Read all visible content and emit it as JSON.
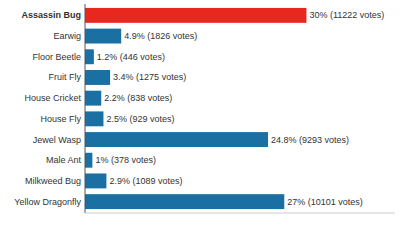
{
  "chart_data": {
    "type": "bar",
    "orientation": "horizontal",
    "categories": [
      "Yellow Dragonfly",
      "Milkweed Bug",
      "Male Ant",
      "Jewel Wasp",
      "House Fly",
      "House Cricket",
      "Fruit Fly",
      "Floor Beetle",
      "Earwig",
      "Assassin Bug"
    ],
    "values": [
      27,
      2.9,
      1.0,
      24.8,
      2.5,
      2.2,
      3.4,
      1.2,
      4.9,
      30
    ],
    "value_labels": [
      "27% (10101 votes)",
      "2.9% (1089 votes)",
      "1% (378 votes)",
      "24.8% (9293 votes)",
      "2.5% (929 votes)",
      "2.2% (838 votes)",
      "3.4% (1275 votes)",
      "1.2% (446 votes)",
      "4.9% (1826 votes)",
      "30% (11222 votes)"
    ],
    "colors": [
      "#1a6fa3",
      "#1a6fa3",
      "#1a6fa3",
      "#1a6fa3",
      "#1a6fa3",
      "#1a6fa3",
      "#1a6fa3",
      "#1a6fa3",
      "#1a6fa3",
      "#e8281e"
    ],
    "xlim": [
      0,
      42
    ],
    "data_labels": true,
    "tick_labels": "y",
    "grid": false
  }
}
